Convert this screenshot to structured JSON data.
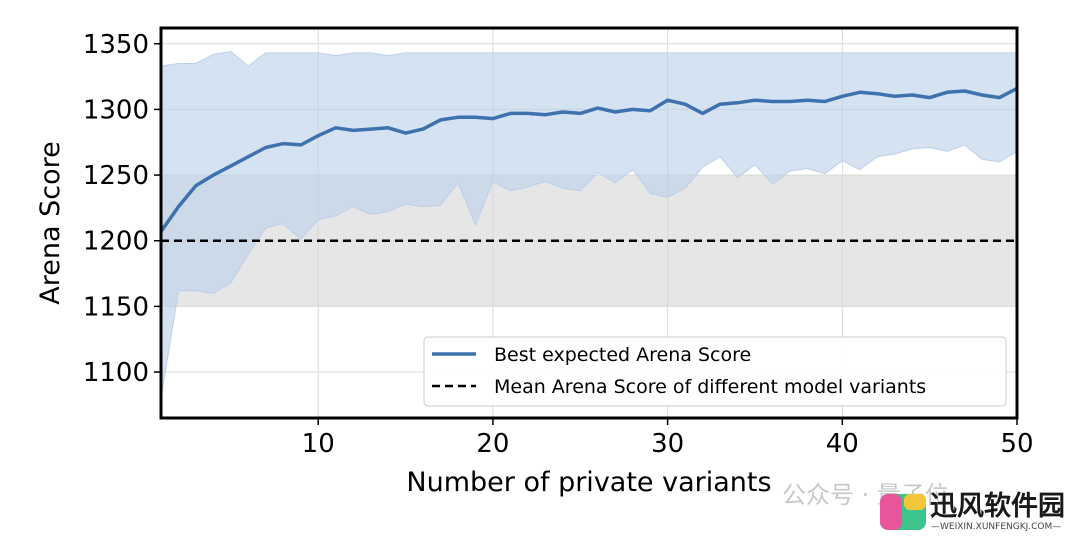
{
  "chart_data": {
    "type": "line",
    "xlabel": "Number of private variants",
    "ylabel": "Arena Score",
    "xlim": [
      1,
      50
    ],
    "ylim": [
      1065,
      1362
    ],
    "xticks": [
      10,
      20,
      30,
      40,
      50
    ],
    "yticks": [
      1100,
      1150,
      1200,
      1250,
      1300,
      1350
    ],
    "grid": true,
    "legend_position": "lower-right",
    "colors": {
      "series_line": "#3d72ae",
      "band_fill": "#bcd0e8",
      "reference_line": "#000000",
      "reference_band": "#e6e6e6"
    },
    "reference_band": {
      "y_low": 1150,
      "y_high": 1250
    },
    "series": [
      {
        "name": "Best expected Arena Score",
        "style": "solid",
        "x": [
          1,
          2,
          3,
          4,
          5,
          6,
          7,
          8,
          9,
          10,
          11,
          12,
          13,
          14,
          15,
          16,
          17,
          18,
          19,
          20,
          21,
          22,
          23,
          24,
          25,
          26,
          27,
          28,
          29,
          30,
          31,
          32,
          33,
          34,
          35,
          36,
          37,
          38,
          39,
          40,
          41,
          42,
          43,
          44,
          45,
          46,
          47,
          48,
          49,
          50
        ],
        "y": [
          1207,
          1226,
          1242,
          1250,
          1257,
          1264,
          1271,
          1274,
          1273,
          1280,
          1286,
          1284,
          1285,
          1286,
          1282,
          1285,
          1292,
          1294,
          1294,
          1293,
          1297,
          1297,
          1296,
          1298,
          1297,
          1301,
          1298,
          1300,
          1299,
          1307,
          1304,
          1297,
          1304,
          1305,
          1307,
          1306,
          1306,
          1307,
          1306,
          1310,
          1313,
          1312,
          1310,
          1311,
          1309,
          1313,
          1314,
          1311,
          1309,
          1316
        ],
        "upper": [
          1333,
          1335,
          1335,
          1342,
          1344,
          1333,
          1343,
          1343,
          1343,
          1343,
          1341,
          1343,
          1343,
          1341,
          1343,
          1343,
          1343,
          1343,
          1343,
          1343,
          1343,
          1343,
          1343,
          1343,
          1343,
          1343,
          1343,
          1343,
          1343,
          1343,
          1343,
          1343,
          1343,
          1343,
          1343,
          1343,
          1343,
          1343,
          1343,
          1343,
          1343,
          1343,
          1343,
          1343,
          1343,
          1343,
          1343,
          1343,
          1343,
          1343
        ],
        "lower": [
          1080,
          1162,
          1162,
          1160,
          1168,
          1190,
          1210,
          1213,
          1201,
          1216,
          1219,
          1226,
          1220,
          1222,
          1228,
          1226,
          1227,
          1244,
          1212,
          1245,
          1238,
          1241,
          1245,
          1240,
          1238,
          1252,
          1244,
          1254,
          1236,
          1233,
          1240,
          1256,
          1264,
          1248,
          1258,
          1243,
          1253,
          1255,
          1251,
          1261,
          1254,
          1264,
          1266,
          1270,
          1271,
          1268,
          1273,
          1262,
          1260,
          1268
        ]
      },
      {
        "name": "Mean Arena Score of different model variants",
        "style": "dashed",
        "constant": 1200
      }
    ]
  },
  "watermark": {
    "wechat_text": "公众号 · 量子位",
    "brand_cn": "迅风软件园",
    "brand_url": "—WEIXIN.XUNFENGKJ.COM—"
  }
}
